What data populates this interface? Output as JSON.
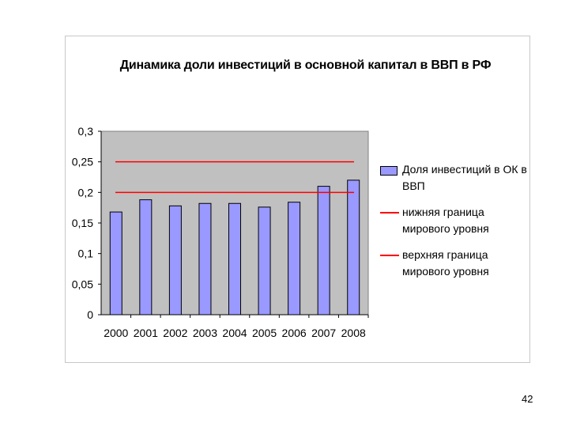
{
  "page": {
    "number": "42"
  },
  "chart_data": {
    "type": "bar",
    "title": "Динамика доли инвестиций в основной капитал в ВВП в РФ",
    "categories": [
      "2000",
      "2001",
      "2002",
      "2003",
      "2004",
      "2005",
      "2006",
      "2007",
      "2008"
    ],
    "series": [
      {
        "name": "Доля инвестиций в ОК в ВВП",
        "type": "bar",
        "values": [
          0.168,
          0.188,
          0.178,
          0.182,
          0.182,
          0.176,
          0.184,
          0.21,
          0.22
        ],
        "color": "#9999ff"
      }
    ],
    "reference_lines": [
      {
        "name": "нижняя граница мирового уровня",
        "value": 0.2,
        "color": "#ff0000"
      },
      {
        "name": "верхняя граница мирового уровня",
        "value": 0.25,
        "color": "#ff0000"
      }
    ],
    "ylim": [
      0,
      0.3
    ],
    "yticks": [
      "0",
      "0,05",
      "0,1",
      "0,15",
      "0,2",
      "0,25",
      "0,3"
    ],
    "ytick_values": [
      0,
      0.05,
      0.1,
      0.15,
      0.2,
      0.25,
      0.3
    ],
    "xlabel": "",
    "ylabel": "",
    "plot_background": "#c0c0c0",
    "legend_position": "right"
  }
}
